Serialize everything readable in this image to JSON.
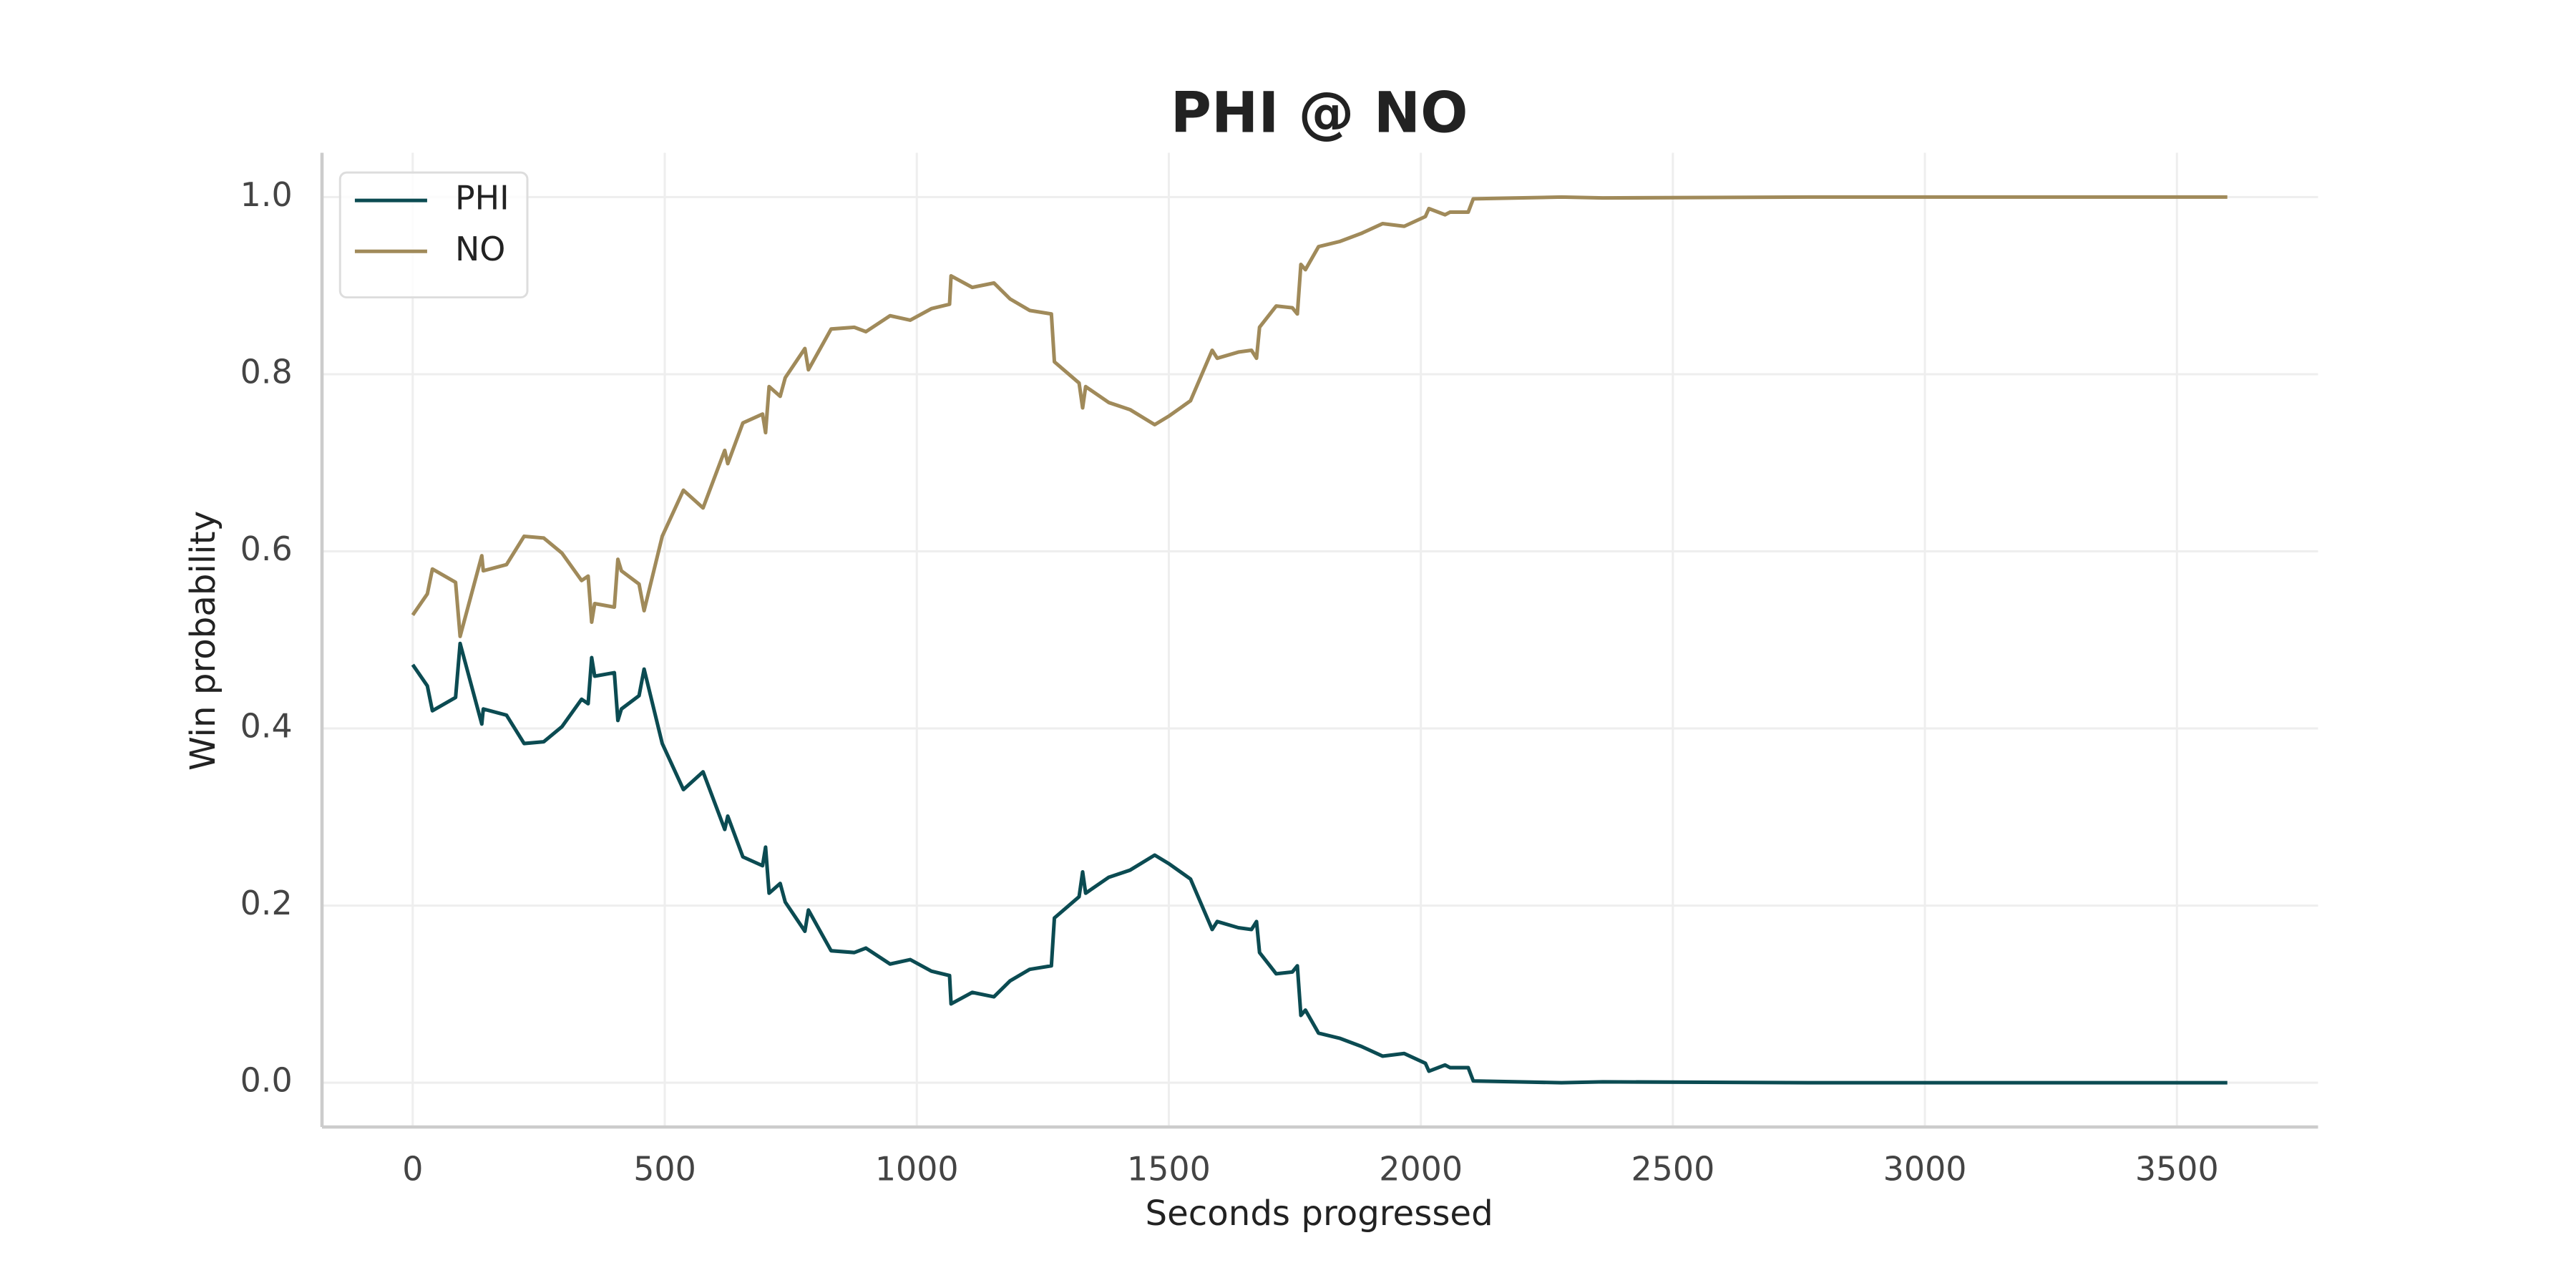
{
  "chart_data": {
    "type": "line",
    "title": "PHI @ NO",
    "xlabel": "Seconds progressed",
    "ylabel": "Win probability",
    "x": [
      0,
      29,
      39,
      85,
      94,
      137,
      140,
      186,
      221,
      260,
      296,
      335,
      348,
      355,
      361,
      400,
      407,
      414,
      449,
      459,
      495,
      537,
      576,
      619,
      625,
      655,
      694,
      700,
      707,
      729,
      739,
      778,
      785,
      830,
      876,
      899,
      947,
      987,
      1029,
      1065,
      1068,
      1110,
      1153,
      1185,
      1224,
      1267,
      1273,
      1322,
      1329,
      1335,
      1381,
      1423,
      1472,
      1501,
      1543,
      1586,
      1596,
      1638,
      1664,
      1674,
      1680,
      1713,
      1745,
      1755,
      1762,
      1771,
      1797,
      1840,
      1882,
      1924,
      1967,
      2009,
      2016,
      2048,
      2058,
      2094,
      2104,
      2279,
      2361,
      2768,
      3600
    ],
    "series": [
      {
        "name": "PHI",
        "color": "#0b4b52",
        "values": [
          0.472,
          0.448,
          0.42,
          0.435,
          0.496,
          0.405,
          0.422,
          0.415,
          0.383,
          0.385,
          0.402,
          0.433,
          0.428,
          0.48,
          0.459,
          0.463,
          0.409,
          0.422,
          0.437,
          0.467,
          0.383,
          0.331,
          0.351,
          0.286,
          0.301,
          0.255,
          0.245,
          0.266,
          0.214,
          0.225,
          0.204,
          0.171,
          0.195,
          0.149,
          0.147,
          0.152,
          0.134,
          0.139,
          0.126,
          0.121,
          0.089,
          0.102,
          0.097,
          0.115,
          0.128,
          0.132,
          0.186,
          0.21,
          0.238,
          0.214,
          0.232,
          0.24,
          0.257,
          0.247,
          0.23,
          0.173,
          0.182,
          0.175,
          0.173,
          0.182,
          0.147,
          0.123,
          0.125,
          0.132,
          0.076,
          0.082,
          0.056,
          0.05,
          0.041,
          0.03,
          0.033,
          0.022,
          0.013,
          0.02,
          0.017,
          0.017,
          0.002,
          0.0,
          0.001,
          0.0,
          0.0
        ]
      },
      {
        "name": "NO",
        "color": "#a08a5a",
        "values": [
          0.528,
          0.552,
          0.58,
          0.565,
          0.504,
          0.595,
          0.578,
          0.585,
          0.617,
          0.615,
          0.598,
          0.567,
          0.572,
          0.52,
          0.541,
          0.537,
          0.591,
          0.578,
          0.563,
          0.533,
          0.617,
          0.669,
          0.649,
          0.714,
          0.699,
          0.745,
          0.755,
          0.734,
          0.786,
          0.775,
          0.796,
          0.829,
          0.805,
          0.851,
          0.853,
          0.848,
          0.866,
          0.861,
          0.874,
          0.879,
          0.911,
          0.898,
          0.903,
          0.885,
          0.872,
          0.868,
          0.814,
          0.79,
          0.762,
          0.786,
          0.768,
          0.76,
          0.743,
          0.753,
          0.77,
          0.827,
          0.818,
          0.825,
          0.827,
          0.818,
          0.853,
          0.877,
          0.875,
          0.868,
          0.924,
          0.918,
          0.944,
          0.95,
          0.959,
          0.97,
          0.967,
          0.978,
          0.987,
          0.98,
          0.983,
          0.983,
          0.998,
          1.0,
          0.999,
          1.0,
          1.0
        ]
      }
    ],
    "xlim": [
      -180,
      3780
    ],
    "xticks": [
      0,
      500,
      1000,
      1500,
      2000,
      2500,
      3000,
      3500
    ],
    "ylim": [
      -0.05,
      1.05
    ],
    "yticks": [
      {
        "value": 0,
        "label": "0.0"
      },
      0.2,
      0.4,
      0.6,
      0.8,
      {
        "value": 1,
        "label": "1.0"
      }
    ],
    "grid": true,
    "legend": "upper left"
  }
}
